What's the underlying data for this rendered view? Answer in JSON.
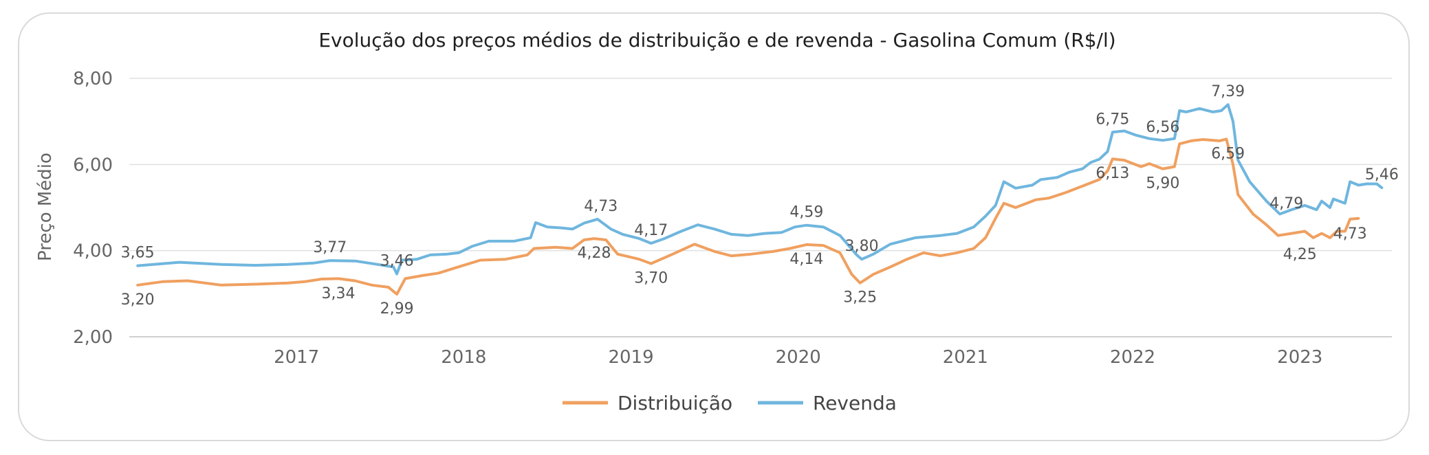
{
  "chart_data": {
    "type": "line",
    "title": "Evolução dos preços médios de distribuição e de revenda - Gasolina Comum (R$/l)",
    "ylabel": "Preço Médio",
    "xlabel": "",
    "ylim": [
      2,
      8
    ],
    "yticks": [
      "8,00",
      "6,00",
      "4,00",
      "2,00"
    ],
    "ytick_values": [
      8,
      6,
      4,
      2
    ],
    "xticks": [
      "2017",
      "2018",
      "2019",
      "2020",
      "2021",
      "2022",
      "2023"
    ],
    "xtick_values": [
      2017,
      2018,
      2019,
      2020,
      2021,
      2022,
      2023
    ],
    "xlim": [
      2016.0,
      2023.55
    ],
    "legend_position": "bottom",
    "grid": true,
    "series": [
      {
        "name": "Revenda",
        "color": "#6fb6de",
        "points": [
          [
            2016.05,
            3.65
          ],
          [
            2016.3,
            3.73
          ],
          [
            2016.55,
            3.68
          ],
          [
            2016.75,
            3.66
          ],
          [
            2016.95,
            3.68
          ],
          [
            2017.1,
            3.71
          ],
          [
            2017.2,
            3.77
          ],
          [
            2017.35,
            3.76
          ],
          [
            2017.5,
            3.67
          ],
          [
            2017.58,
            3.62
          ],
          [
            2017.6,
            3.46
          ],
          [
            2017.63,
            3.78
          ],
          [
            2017.72,
            3.8
          ],
          [
            2017.8,
            3.9
          ],
          [
            2017.9,
            3.92
          ],
          [
            2017.97,
            3.95
          ],
          [
            2018.05,
            4.1
          ],
          [
            2018.15,
            4.22
          ],
          [
            2018.3,
            4.22
          ],
          [
            2018.4,
            4.3
          ],
          [
            2018.43,
            4.65
          ],
          [
            2018.5,
            4.55
          ],
          [
            2018.58,
            4.53
          ],
          [
            2018.65,
            4.5
          ],
          [
            2018.72,
            4.64
          ],
          [
            2018.8,
            4.73
          ],
          [
            2018.88,
            4.5
          ],
          [
            2018.95,
            4.38
          ],
          [
            2019.05,
            4.28
          ],
          [
            2019.12,
            4.17
          ],
          [
            2019.2,
            4.28
          ],
          [
            2019.3,
            4.45
          ],
          [
            2019.4,
            4.6
          ],
          [
            2019.5,
            4.5
          ],
          [
            2019.6,
            4.38
          ],
          [
            2019.7,
            4.35
          ],
          [
            2019.8,
            4.4
          ],
          [
            2019.9,
            4.42
          ],
          [
            2019.98,
            4.55
          ],
          [
            2020.05,
            4.59
          ],
          [
            2020.15,
            4.55
          ],
          [
            2020.25,
            4.35
          ],
          [
            2020.35,
            3.9
          ],
          [
            2020.38,
            3.8
          ],
          [
            2020.45,
            3.92
          ],
          [
            2020.55,
            4.15
          ],
          [
            2020.7,
            4.3
          ],
          [
            2020.85,
            4.35
          ],
          [
            2020.95,
            4.4
          ],
          [
            2021.05,
            4.55
          ],
          [
            2021.12,
            4.8
          ],
          [
            2021.18,
            5.05
          ],
          [
            2021.23,
            5.6
          ],
          [
            2021.3,
            5.45
          ],
          [
            2021.4,
            5.52
          ],
          [
            2021.45,
            5.65
          ],
          [
            2021.55,
            5.7
          ],
          [
            2021.62,
            5.82
          ],
          [
            2021.7,
            5.9
          ],
          [
            2021.75,
            6.05
          ],
          [
            2021.8,
            6.12
          ],
          [
            2021.85,
            6.3
          ],
          [
            2021.88,
            6.75
          ],
          [
            2021.95,
            6.78
          ],
          [
            2022.02,
            6.68
          ],
          [
            2022.1,
            6.6
          ],
          [
            2022.18,
            6.56
          ],
          [
            2022.25,
            6.6
          ],
          [
            2022.28,
            7.25
          ],
          [
            2022.32,
            7.22
          ],
          [
            2022.4,
            7.3
          ],
          [
            2022.48,
            7.22
          ],
          [
            2022.53,
            7.25
          ],
          [
            2022.57,
            7.39
          ],
          [
            2022.6,
            7.0
          ],
          [
            2022.63,
            6.1
          ],
          [
            2022.7,
            5.6
          ],
          [
            2022.8,
            5.15
          ],
          [
            2022.88,
            4.85
          ],
          [
            2022.95,
            4.95
          ],
          [
            2023.03,
            5.05
          ],
          [
            2023.1,
            4.95
          ],
          [
            2023.13,
            5.15
          ],
          [
            2023.18,
            5.0
          ],
          [
            2023.2,
            5.2
          ],
          [
            2023.27,
            5.1
          ],
          [
            2023.3,
            5.6
          ],
          [
            2023.35,
            5.52
          ],
          [
            2023.4,
            5.55
          ],
          [
            2023.46,
            5.55
          ],
          [
            2023.49,
            5.46
          ]
        ]
      },
      {
        "name": "Distribuição",
        "color": "#f0a060",
        "points": [
          [
            2016.05,
            3.2
          ],
          [
            2016.2,
            3.28
          ],
          [
            2016.35,
            3.3
          ],
          [
            2016.55,
            3.2
          ],
          [
            2016.75,
            3.22
          ],
          [
            2016.95,
            3.25
          ],
          [
            2017.05,
            3.28
          ],
          [
            2017.15,
            3.34
          ],
          [
            2017.25,
            3.35
          ],
          [
            2017.35,
            3.3
          ],
          [
            2017.45,
            3.2
          ],
          [
            2017.55,
            3.15
          ],
          [
            2017.6,
            2.99
          ],
          [
            2017.65,
            3.35
          ],
          [
            2017.75,
            3.42
          ],
          [
            2017.85,
            3.48
          ],
          [
            2017.95,
            3.6
          ],
          [
            2018.1,
            3.78
          ],
          [
            2018.25,
            3.8
          ],
          [
            2018.38,
            3.9
          ],
          [
            2018.42,
            4.05
          ],
          [
            2018.55,
            4.08
          ],
          [
            2018.65,
            4.05
          ],
          [
            2018.72,
            4.25
          ],
          [
            2018.78,
            4.28
          ],
          [
            2018.85,
            4.25
          ],
          [
            2018.92,
            3.92
          ],
          [
            2019.05,
            3.8
          ],
          [
            2019.12,
            3.7
          ],
          [
            2019.25,
            3.92
          ],
          [
            2019.38,
            4.15
          ],
          [
            2019.5,
            3.98
          ],
          [
            2019.6,
            3.88
          ],
          [
            2019.72,
            3.92
          ],
          [
            2019.85,
            3.98
          ],
          [
            2019.95,
            4.05
          ],
          [
            2020.05,
            4.14
          ],
          [
            2020.15,
            4.12
          ],
          [
            2020.25,
            3.95
          ],
          [
            2020.32,
            3.45
          ],
          [
            2020.37,
            3.25
          ],
          [
            2020.45,
            3.45
          ],
          [
            2020.55,
            3.62
          ],
          [
            2020.65,
            3.8
          ],
          [
            2020.75,
            3.95
          ],
          [
            2020.85,
            3.88
          ],
          [
            2020.95,
            3.95
          ],
          [
            2021.05,
            4.05
          ],
          [
            2021.12,
            4.3
          ],
          [
            2021.18,
            4.75
          ],
          [
            2021.23,
            5.1
          ],
          [
            2021.3,
            5.0
          ],
          [
            2021.42,
            5.18
          ],
          [
            2021.5,
            5.22
          ],
          [
            2021.6,
            5.35
          ],
          [
            2021.7,
            5.5
          ],
          [
            2021.8,
            5.65
          ],
          [
            2021.85,
            5.85
          ],
          [
            2021.88,
            6.13
          ],
          [
            2021.95,
            6.1
          ],
          [
            2022.05,
            5.95
          ],
          [
            2022.1,
            6.02
          ],
          [
            2022.18,
            5.9
          ],
          [
            2022.25,
            5.95
          ],
          [
            2022.28,
            6.48
          ],
          [
            2022.35,
            6.55
          ],
          [
            2022.42,
            6.58
          ],
          [
            2022.52,
            6.55
          ],
          [
            2022.56,
            6.59
          ],
          [
            2022.6,
            6.0
          ],
          [
            2022.63,
            5.3
          ],
          [
            2022.72,
            4.85
          ],
          [
            2022.8,
            4.6
          ],
          [
            2022.87,
            4.35
          ],
          [
            2022.95,
            4.4
          ],
          [
            2023.03,
            4.45
          ],
          [
            2023.08,
            4.3
          ],
          [
            2023.13,
            4.4
          ],
          [
            2023.18,
            4.3
          ],
          [
            2023.22,
            4.45
          ],
          [
            2023.27,
            4.45
          ],
          [
            2023.3,
            4.73
          ],
          [
            2023.35,
            4.75
          ]
        ]
      }
    ],
    "data_labels": [
      {
        "series": "Revenda",
        "x": 2016.05,
        "y": 3.65,
        "text": "3,65"
      },
      {
        "series": "Distribuição",
        "x": 2016.05,
        "y": 3.2,
        "text": "3,20"
      },
      {
        "series": "Revenda",
        "x": 2017.2,
        "y": 3.77,
        "text": "3,77"
      },
      {
        "series": "Distribuição",
        "x": 2017.25,
        "y": 3.34,
        "text": "3,34"
      },
      {
        "series": "Revenda",
        "x": 2017.6,
        "y": 3.46,
        "text": "3,46"
      },
      {
        "series": "Distribuição",
        "x": 2017.6,
        "y": 2.99,
        "text": "2,99"
      },
      {
        "series": "Revenda",
        "x": 2018.82,
        "y": 4.73,
        "text": "4,73"
      },
      {
        "series": "Distribuição",
        "x": 2018.78,
        "y": 4.28,
        "text": "4,28"
      },
      {
        "series": "Revenda",
        "x": 2019.12,
        "y": 4.17,
        "text": "4,17"
      },
      {
        "series": "Distribuição",
        "x": 2019.12,
        "y": 3.7,
        "text": "3,70"
      },
      {
        "series": "Revenda",
        "x": 2020.05,
        "y": 4.59,
        "text": "4,59"
      },
      {
        "series": "Distribuição",
        "x": 2020.05,
        "y": 4.14,
        "text": "4,14"
      },
      {
        "series": "Revenda",
        "x": 2020.38,
        "y": 3.8,
        "text": "3,80"
      },
      {
        "series": "Distribuição",
        "x": 2020.37,
        "y": 3.25,
        "text": "3,25"
      },
      {
        "series": "Revenda",
        "x": 2021.88,
        "y": 6.75,
        "text": "6,75"
      },
      {
        "series": "Distribuição",
        "x": 2021.88,
        "y": 6.13,
        "text": "6,13"
      },
      {
        "series": "Revenda",
        "x": 2022.18,
        "y": 6.56,
        "text": "6,56"
      },
      {
        "series": "Distribuição",
        "x": 2022.18,
        "y": 5.9,
        "text": "5,90"
      },
      {
        "series": "Revenda",
        "x": 2022.57,
        "y": 7.39,
        "text": "7,39"
      },
      {
        "series": "Distribuição",
        "x": 2022.57,
        "y": 6.59,
        "text": "6,59"
      },
      {
        "series": "Revenda",
        "x": 2022.92,
        "y": 4.79,
        "text": "4,79"
      },
      {
        "series": "Distribuição",
        "x": 2023.0,
        "y": 4.25,
        "text": "4,25"
      },
      {
        "series": "Revenda",
        "x": 2023.49,
        "y": 5.46,
        "text": "5,46"
      },
      {
        "series": "Distribuição",
        "x": 2023.3,
        "y": 4.73,
        "text": "4,73"
      }
    ]
  }
}
